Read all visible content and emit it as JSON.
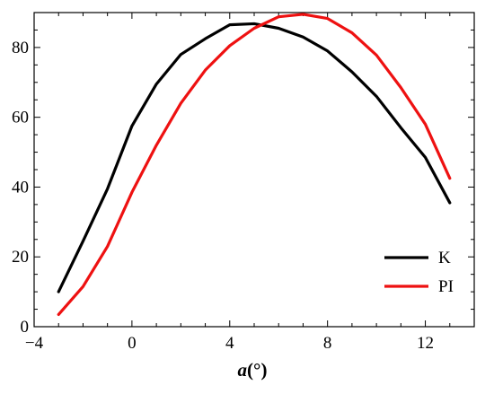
{
  "chart_data": {
    "type": "line",
    "xlabel_main": "a",
    "xlabel_unit": "(°)",
    "ylabel": "",
    "xlim": [
      -4,
      14
    ],
    "ylim": [
      0,
      90
    ],
    "xticks": [
      -4,
      0,
      4,
      8,
      12
    ],
    "xtick_labels": [
      "−4",
      "0",
      "4",
      "8",
      "12"
    ],
    "yticks": [
      0,
      20,
      40,
      60,
      80
    ],
    "ytick_labels": [
      "0",
      "20",
      "40",
      "60",
      "80"
    ],
    "grid": false,
    "legend_position": "bottom-right",
    "series": [
      {
        "name": "K",
        "color": "#000000",
        "x": [
          -3,
          -2,
          -1,
          0,
          1,
          2,
          3,
          4,
          5,
          6,
          7,
          8,
          9,
          10,
          11,
          12,
          13
        ],
        "y": [
          10,
          24.5,
          39.5,
          57.5,
          69.5,
          78,
          82.5,
          86.5,
          86.8,
          85.5,
          83,
          79,
          73,
          66,
          57,
          48.5,
          35.5
        ]
      },
      {
        "name": "PI",
        "color": "#ee1111",
        "x": [
          -3,
          -2,
          -1,
          0,
          1,
          2,
          3,
          4,
          5,
          6,
          7,
          8,
          9,
          10,
          11,
          12,
          13
        ],
        "y": [
          3.5,
          11.5,
          23,
          38.5,
          52,
          64,
          73.5,
          80.5,
          85.5,
          88.8,
          89.5,
          88.3,
          84.2,
          77.8,
          68.5,
          58,
          42.5
        ]
      }
    ]
  }
}
